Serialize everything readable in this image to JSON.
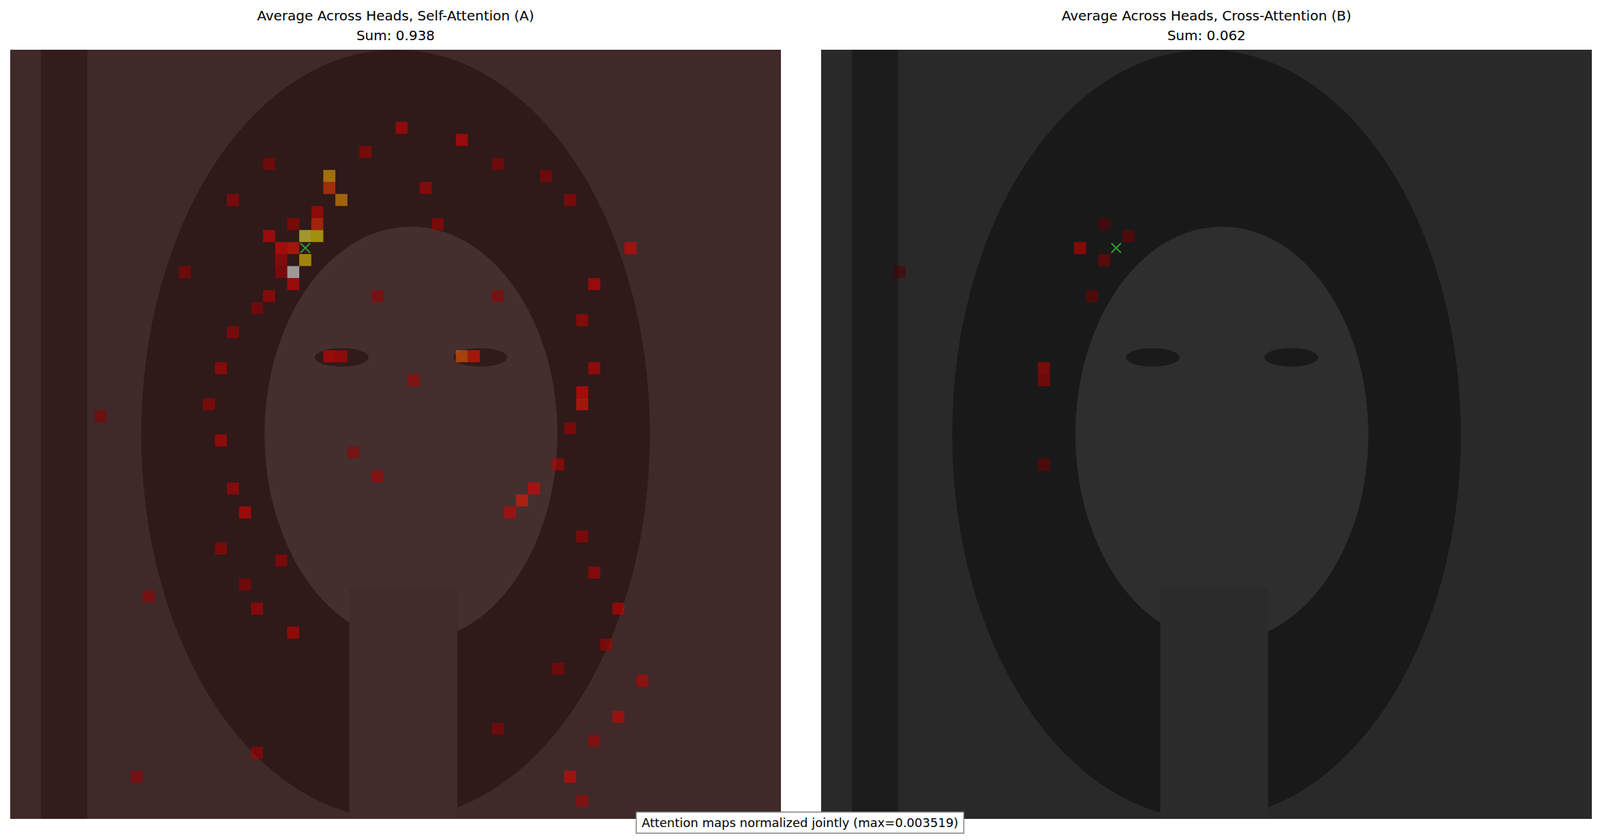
{
  "chart_data": [
    {
      "type": "heatmap",
      "title": "Average Across Heads, Self-Attention (A)",
      "subtitle": "Sum: 0.938",
      "xlim": [
        -0.5,
        63.5
      ],
      "ylim": [
        63.5,
        -0.5
      ],
      "tick_labels": false,
      "vmin": 0,
      "vmax": 0.003519,
      "base_value": 0.0002,
      "query": [
        16,
        24
      ],
      "cells": [
        [
          15,
          24,
          0.0028
        ],
        [
          15,
          25,
          0.0025
        ],
        [
          17,
          24,
          0.0024
        ],
        [
          18,
          23,
          0.003519
        ],
        [
          10,
          26,
          0.0022
        ],
        [
          12,
          27,
          0.0021
        ],
        [
          11,
          26,
          0.0016
        ],
        [
          14,
          25,
          0.0015
        ],
        [
          16,
          23,
          0.0014
        ],
        [
          16,
          22,
          0.0013
        ],
        [
          15,
          21,
          0.0012
        ],
        [
          19,
          23,
          0.0012
        ],
        [
          13,
          25,
          0.0011
        ],
        [
          17,
          22,
          0.001
        ],
        [
          14,
          23,
          0.0009
        ],
        [
          18,
          22,
          0.0009
        ],
        [
          20,
          21,
          0.001
        ],
        [
          21,
          20,
          0.0008
        ],
        [
          25,
          37,
          0.0018
        ],
        [
          25,
          38,
          0.0014
        ],
        [
          25,
          26,
          0.0012
        ],
        [
          25,
          27,
          0.0011
        ],
        [
          7,
          37,
          0.0012
        ],
        [
          6,
          32,
          0.0011
        ],
        [
          8,
          29,
          0.0009
        ],
        [
          9,
          40,
          0.0008
        ],
        [
          10,
          44,
          0.0008
        ],
        [
          12,
          46,
          0.0009
        ],
        [
          16,
          51,
          0.0012
        ],
        [
          19,
          48,
          0.0012
        ],
        [
          22,
          47,
          0.001
        ],
        [
          26,
          48,
          0.0011
        ],
        [
          28,
          47,
          0.0013
        ],
        [
          29,
          47,
          0.0014
        ],
        [
          31,
          46,
          0.0009
        ],
        [
          34,
          45,
          0.001
        ],
        [
          36,
          43,
          0.0012
        ],
        [
          37,
          42,
          0.0014
        ],
        [
          38,
          41,
          0.0011
        ],
        [
          35,
          30,
          0.0009
        ],
        [
          33,
          28,
          0.0008
        ],
        [
          23,
          18,
          0.0009
        ],
        [
          26,
          17,
          0.001
        ],
        [
          29,
          16,
          0.0009
        ],
        [
          32,
          17,
          0.0011
        ],
        [
          36,
          18,
          0.001
        ],
        [
          38,
          19,
          0.0012
        ],
        [
          41,
          17,
          0.0009
        ],
        [
          44,
          19,
          0.0008
        ],
        [
          46,
          20,
          0.001
        ],
        [
          48,
          23,
          0.0011
        ],
        [
          42,
          22,
          0.0009
        ],
        [
          40,
          47,
          0.0009
        ],
        [
          43,
          48,
          0.001
        ],
        [
          46,
          50,
          0.0011
        ],
        [
          49,
          49,
          0.0009
        ],
        [
          52,
          52,
          0.001
        ],
        [
          55,
          50,
          0.0011
        ],
        [
          57,
          48,
          0.0009
        ],
        [
          51,
          45,
          0.0008
        ],
        [
          60,
          46,
          0.0012
        ],
        [
          62,
          47,
          0.0009
        ],
        [
          56,
          40,
          0.0008
        ],
        [
          58,
          20,
          0.0009
        ],
        [
          60,
          10,
          0.0008
        ],
        [
          45,
          11,
          0.0008
        ],
        [
          30,
          7,
          0.0007
        ],
        [
          18,
          14,
          0.0008
        ],
        [
          12,
          18,
          0.0009
        ],
        [
          9,
          21,
          0.0008
        ],
        [
          20,
          30,
          0.0008
        ],
        [
          27,
          33,
          0.0009
        ],
        [
          20,
          40,
          0.0008
        ],
        [
          14,
          35,
          0.0009
        ],
        [
          11,
          34,
          0.001
        ]
      ]
    },
    {
      "type": "heatmap",
      "title": "Average Across Heads, Cross-Attention (B)",
      "subtitle": "Sum: 0.062",
      "xlim": [
        -0.5,
        63.5
      ],
      "ylim": [
        63.5,
        -0.5
      ],
      "tick_labels": false,
      "vmin": 0,
      "vmax": 0.003519,
      "base_value": 1e-05,
      "query": [
        16,
        24
      ],
      "cells": [
        [
          16,
          21,
          0.0011
        ],
        [
          26,
          18,
          0.001
        ],
        [
          27,
          18,
          0.0009
        ],
        [
          17,
          23,
          0.0007
        ],
        [
          20,
          22,
          0.0006
        ],
        [
          15,
          25,
          0.0006
        ],
        [
          34,
          18,
          0.0006
        ],
        [
          18,
          6,
          0.0004
        ],
        [
          14,
          23,
          0.0005
        ]
      ],
      "annotation": "Attention maps normalized jointly (max=0.003519)"
    }
  ]
}
